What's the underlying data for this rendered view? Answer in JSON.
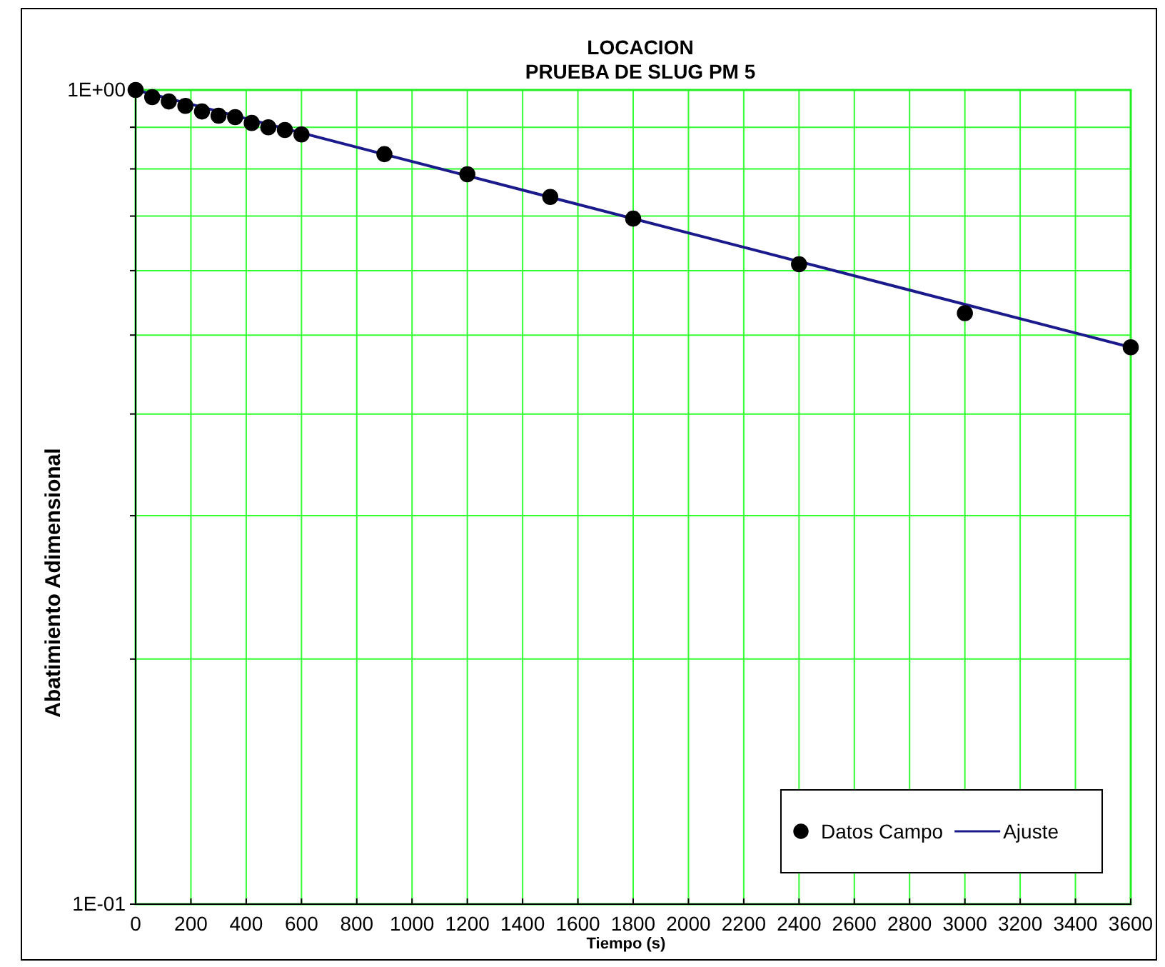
{
  "chart_data": {
    "type": "scatter",
    "title": "LOCACION",
    "subtitle": "PRUEBA DE SLUG PM 5",
    "xlabel": "Tiempo (s)",
    "ylabel": "Abatimiento Adimensional",
    "log": "y",
    "grid": true,
    "legend": "bottom right",
    "xlim": [
      0,
      3600
    ],
    "xticks": [
      0,
      200,
      400,
      600,
      800,
      1000,
      1200,
      1400,
      1600,
      1800,
      2000,
      2200,
      2400,
      2600,
      2800,
      3000,
      3200,
      3400,
      3600
    ],
    "ylim": [
      0.1,
      1
    ],
    "yticks": [
      {
        "value": 0.1,
        "label": "1E-01"
      },
      {
        "value": 0.2,
        "label": null
      },
      {
        "value": 0.3,
        "label": null
      },
      {
        "value": 0.4,
        "label": null
      },
      {
        "value": 0.5,
        "label": null
      },
      {
        "value": 0.6,
        "label": null
      },
      {
        "value": 0.7,
        "label": null
      },
      {
        "value": 0.8,
        "label": null
      },
      {
        "value": 0.9,
        "label": null
      },
      {
        "value": 1,
        "label": "1E+00"
      }
    ],
    "series": [
      {
        "name": "Datos Campo",
        "marker": "circle",
        "color": "#000000",
        "x": [
          0,
          60,
          120,
          180,
          240,
          300,
          360,
          420,
          480,
          540,
          600,
          900,
          1200,
          1500,
          1800,
          2400,
          3000,
          3600
        ],
        "values": [
          1,
          0.98,
          0.968,
          0.956,
          0.941,
          0.93,
          0.926,
          0.911,
          0.9,
          0.893,
          0.882,
          0.834,
          0.788,
          0.739,
          0.695,
          0.611,
          0.532,
          0.483
        ]
      },
      {
        "name": "Ajuste",
        "type": "line",
        "marker": "none",
        "color": "#1a1a8c",
        "x": [
          0,
          3600
        ],
        "values": [
          1,
          0.483
        ]
      }
    ]
  }
}
